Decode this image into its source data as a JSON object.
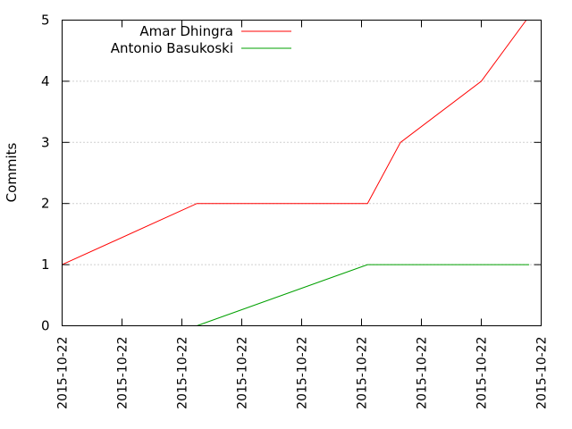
{
  "chart_data": {
    "type": "line",
    "title": "",
    "xlabel": "",
    "ylabel": "Commits",
    "ylim": [
      0,
      5
    ],
    "xlim": [
      0,
      8
    ],
    "yticks": [
      "0",
      "1",
      "2",
      "3",
      "4",
      "5"
    ],
    "xticks": [
      "2015-10-22",
      "2015-10-22",
      "2015-10-22",
      "2015-10-22",
      "2015-10-22",
      "2015-10-22",
      "2015-10-22",
      "2015-10-22",
      "2015-10-22"
    ],
    "grid": true,
    "legend_position": "top-left",
    "series": [
      {
        "name": "Amar Dhingra",
        "color": "#ff0000",
        "points": [
          [
            0,
            1
          ],
          [
            2.25,
            2
          ],
          [
            5.1,
            2
          ],
          [
            5.65,
            3
          ],
          [
            7.0,
            4
          ],
          [
            7.75,
            5
          ]
        ]
      },
      {
        "name": "Antonio Basukoski",
        "color": "#00a000",
        "points": [
          [
            2.25,
            0
          ],
          [
            5.1,
            1
          ],
          [
            7.8,
            1
          ]
        ]
      }
    ]
  }
}
